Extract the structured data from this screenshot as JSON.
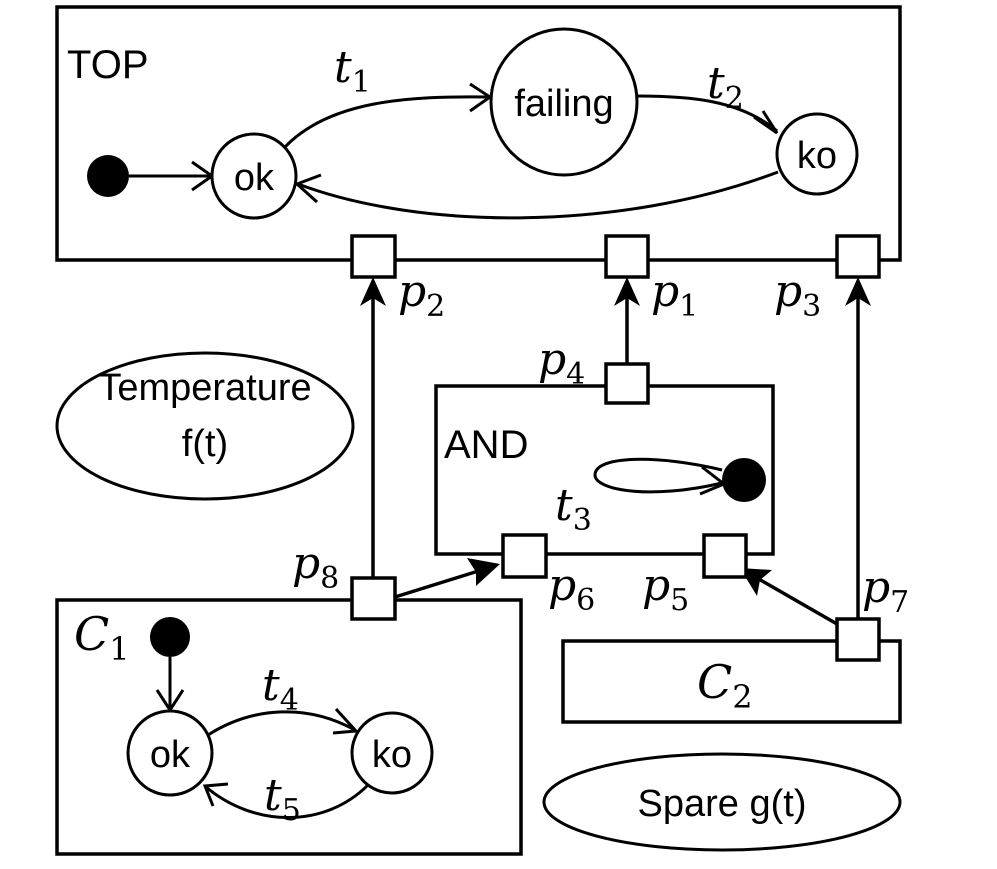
{
  "top": {
    "label": "TOP",
    "states": {
      "ok": "ok",
      "failing": "failing",
      "ko": "ko"
    },
    "transitions": {
      "t1": {
        "sym": "t",
        "sub": "1"
      },
      "t2": {
        "sym": "t",
        "sub": "2"
      }
    }
  },
  "and_gate": {
    "label": "AND",
    "transition": {
      "sym": "t",
      "sub": "3"
    }
  },
  "c1": {
    "label": {
      "sym": "C",
      "sub": "1"
    },
    "states": {
      "ok": "ok",
      "ko": "ko"
    },
    "transitions": {
      "t4": {
        "sym": "t",
        "sub": "4"
      },
      "t5": {
        "sym": "t",
        "sub": "5"
      }
    }
  },
  "c2": {
    "label": {
      "sym": "C",
      "sub": "2"
    }
  },
  "ports": {
    "p1": {
      "sym": "p",
      "sub": "1"
    },
    "p2": {
      "sym": "p",
      "sub": "2"
    },
    "p3": {
      "sym": "p",
      "sub": "3"
    },
    "p4": {
      "sym": "p",
      "sub": "4"
    },
    "p5": {
      "sym": "p",
      "sub": "5"
    },
    "p6": {
      "sym": "p",
      "sub": "6"
    },
    "p7": {
      "sym": "p",
      "sub": "7"
    },
    "p8": {
      "sym": "p",
      "sub": "8"
    }
  },
  "temperature": {
    "line1": "Temperature",
    "line2": "f(t)"
  },
  "spare": {
    "label": "Spare g(t)"
  }
}
